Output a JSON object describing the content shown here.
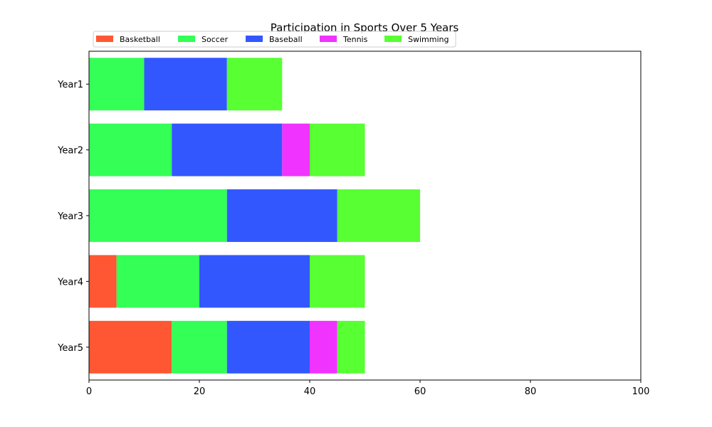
{
  "chart_data": {
    "type": "bar",
    "orientation": "horizontal-stacked",
    "title": "Participation in Sports Over 5 Years",
    "xlabel": "",
    "ylabel": "",
    "xlim": [
      0,
      100
    ],
    "x_ticks": [
      0,
      20,
      40,
      60,
      80,
      100
    ],
    "categories": [
      "Year1",
      "Year2",
      "Year3",
      "Year4",
      "Year5"
    ],
    "grid": false,
    "legend_position": "top-left",
    "series": [
      {
        "name": "Basketball",
        "color": "#ff5733",
        "values": [
          0,
          0,
          0,
          5,
          15
        ]
      },
      {
        "name": "Soccer",
        "color": "#33ff57",
        "values": [
          10,
          15,
          25,
          15,
          10
        ]
      },
      {
        "name": "Baseball",
        "color": "#3357ff",
        "values": [
          15,
          20,
          20,
          20,
          15
        ]
      },
      {
        "name": "Tennis",
        "color": "#f033ff",
        "values": [
          0,
          5,
          0,
          0,
          5
        ]
      },
      {
        "name": "Swimming",
        "color": "#57ff33",
        "values": [
          10,
          10,
          15,
          10,
          5
        ]
      }
    ]
  }
}
